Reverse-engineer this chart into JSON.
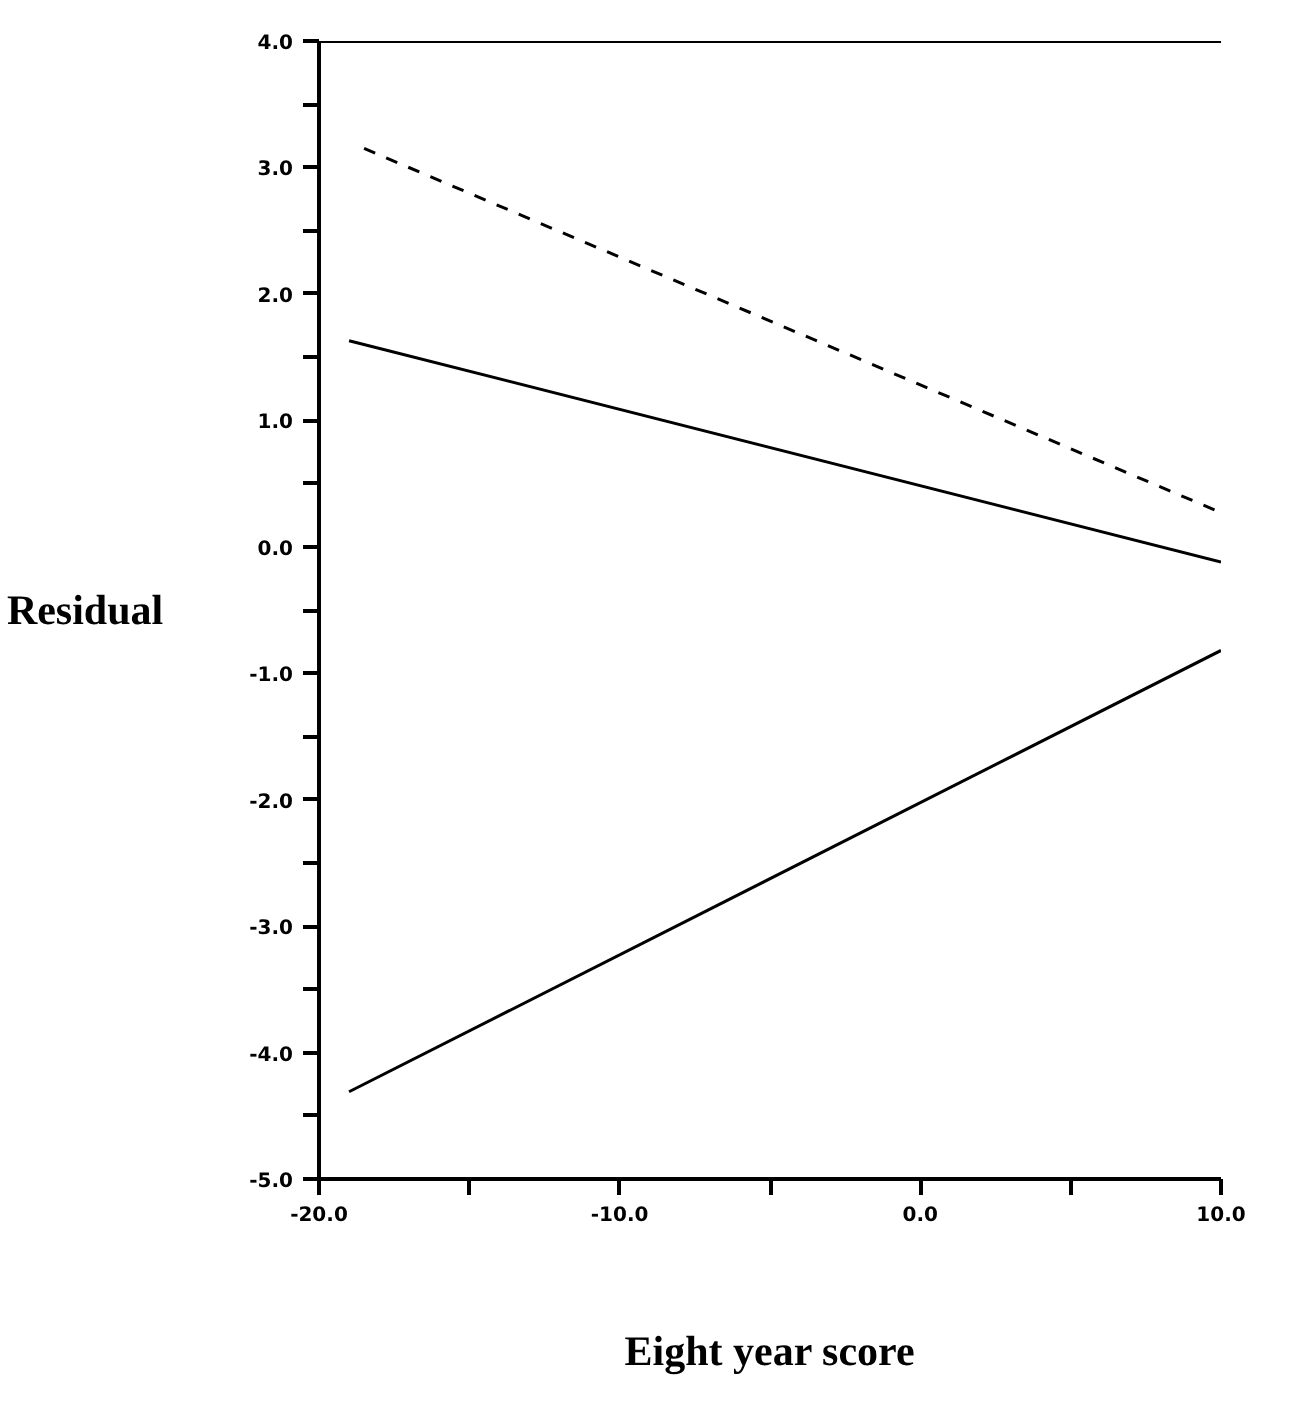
{
  "chart_data": {
    "type": "line",
    "xlabel": "Eight year score",
    "ylabel": "Residual",
    "xlim": [
      -20,
      10
    ],
    "ylim": [
      -5,
      4
    ],
    "xticks": [
      {
        "value": -20,
        "label": "-20.0"
      },
      {
        "value": -15,
        "label": null
      },
      {
        "value": -10,
        "label": "-10.0"
      },
      {
        "value": -5,
        "label": null
      },
      {
        "value": 0,
        "label": "0.0"
      },
      {
        "value": 5,
        "label": null
      },
      {
        "value": 10,
        "label": "10.0"
      }
    ],
    "yticks": [
      {
        "value": -5,
        "label": "-5.0"
      },
      {
        "value": -4.5,
        "label": null
      },
      {
        "value": -4,
        "label": "-4.0"
      },
      {
        "value": -3.5,
        "label": null
      },
      {
        "value": -3,
        "label": "-3.0"
      },
      {
        "value": -2.5,
        "label": null
      },
      {
        "value": -2,
        "label": "-2.0"
      },
      {
        "value": -1.5,
        "label": null
      },
      {
        "value": -1,
        "label": "-1.0"
      },
      {
        "value": -0.5,
        "label": null
      },
      {
        "value": 0,
        "label": "0.0"
      },
      {
        "value": 0.5,
        "label": null
      },
      {
        "value": 1,
        "label": "1.0"
      },
      {
        "value": 1.5,
        "label": null
      },
      {
        "value": 2,
        "label": "2.0"
      },
      {
        "value": 2.5,
        "label": null
      },
      {
        "value": 3,
        "label": "3.0"
      },
      {
        "value": 3.5,
        "label": null
      },
      {
        "value": 4,
        "label": "4.0"
      }
    ],
    "grid": false,
    "series": [
      {
        "color": "#000000",
        "line_style": "dashed",
        "x": [
          -18.5,
          10
        ],
        "values": [
          3.15,
          0.27
        ]
      },
      {
        "color": "#000000",
        "line_style": "solid",
        "x": [
          -19,
          10
        ],
        "values": [
          1.63,
          -0.12
        ]
      },
      {
        "color": "#000000",
        "line_style": "solid",
        "x": [
          -19,
          10
        ],
        "values": [
          -4.31,
          -0.82
        ]
      }
    ]
  }
}
